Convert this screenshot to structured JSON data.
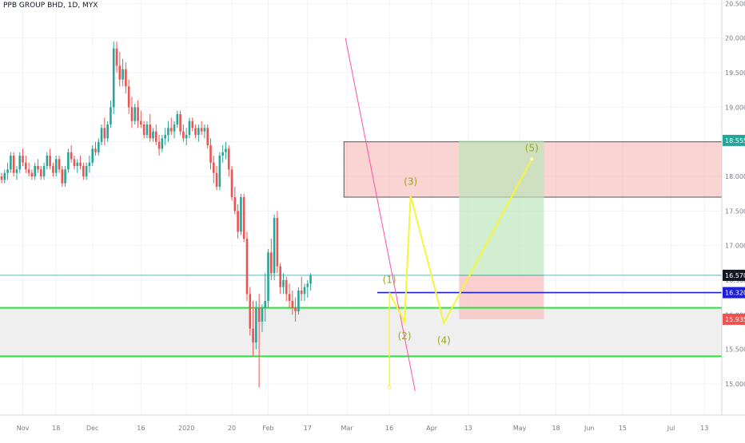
{
  "header": {
    "title": "PPB GROUP BHD, 1D, MYX"
  },
  "colors": {
    "up": "#26a69a",
    "down": "#ef5350",
    "grid": "#f0f3fa",
    "axis_text": "#787b86",
    "trendline": "#ff4fa3",
    "wave": "#f5f53a",
    "wave_label": "#9ea526",
    "support_zone": "#efefef",
    "support_line": "#27e63c",
    "resist_zone": "#f7b6b6",
    "resist_border": "#555555",
    "target_zone": "#b9e6b7",
    "stop_zone": "#f8c3c3",
    "blue_line": "#1f1fd6",
    "teal_line": "#5fb3b0"
  },
  "chart_data": {
    "type": "candlestick",
    "title": "PPB GROUP BHD, 1D, MYX",
    "ylim": [
      14.55,
      20.55
    ],
    "y_ticks": [
      "15.000",
      "15.500",
      "16.000",
      "16.500",
      "17.000",
      "17.500",
      "18.000",
      "18.500",
      "19.000",
      "19.500",
      "20.000",
      "20.500"
    ],
    "x_ticks": [
      {
        "day": 7,
        "label": "Nov"
      },
      {
        "day": 18,
        "label": "18"
      },
      {
        "day": 30,
        "label": "Dec"
      },
      {
        "day": 46,
        "label": "16"
      },
      {
        "day": 61,
        "label": "2020"
      },
      {
        "day": 76,
        "label": "20"
      },
      {
        "day": 88,
        "label": "Feb"
      },
      {
        "day": 101,
        "label": "17"
      },
      {
        "day": 114,
        "label": "Mar"
      },
      {
        "day": 128,
        "label": "16"
      },
      {
        "day": 142,
        "label": "Apr"
      },
      {
        "day": 154,
        "label": "13"
      },
      {
        "day": 171,
        "label": "May"
      },
      {
        "day": 183,
        "label": "18"
      },
      {
        "day": 194,
        "label": "Jun"
      },
      {
        "day": 205,
        "label": "15"
      },
      {
        "day": 221,
        "label": "Jul"
      },
      {
        "day": 232,
        "label": "13"
      }
    ],
    "candles": [
      [
        18.0,
        18.05,
        17.9,
        17.95
      ],
      [
        17.95,
        18.1,
        17.9,
        18.05
      ],
      [
        18.05,
        18.2,
        17.95,
        18.1
      ],
      [
        18.1,
        18.35,
        18.05,
        18.3
      ],
      [
        18.3,
        18.35,
        18.0,
        18.05
      ],
      [
        18.05,
        18.15,
        17.95,
        18.1
      ],
      [
        18.1,
        18.35,
        18.05,
        18.3
      ],
      [
        18.3,
        18.4,
        18.15,
        18.2
      ],
      [
        18.2,
        18.3,
        18.05,
        18.1
      ],
      [
        18.1,
        18.2,
        18.0,
        18.05
      ],
      [
        18.05,
        18.1,
        17.95,
        18.0
      ],
      [
        18.0,
        18.2,
        17.95,
        18.15
      ],
      [
        18.15,
        18.25,
        18.05,
        18.1
      ],
      [
        18.1,
        18.15,
        17.95,
        18.0
      ],
      [
        18.0,
        18.2,
        17.95,
        18.15
      ],
      [
        18.15,
        18.35,
        18.1,
        18.3
      ],
      [
        18.3,
        18.4,
        18.1,
        18.15
      ],
      [
        18.15,
        18.2,
        18.0,
        18.05
      ],
      [
        18.05,
        18.3,
        18.0,
        18.25
      ],
      [
        18.25,
        18.3,
        18.05,
        18.1
      ],
      [
        18.1,
        18.15,
        17.85,
        17.9
      ],
      [
        17.9,
        18.15,
        17.85,
        18.1
      ],
      [
        18.1,
        18.4,
        18.05,
        18.35
      ],
      [
        18.35,
        18.45,
        18.2,
        18.25
      ],
      [
        18.25,
        18.3,
        18.1,
        18.15
      ],
      [
        18.15,
        18.25,
        18.05,
        18.2
      ],
      [
        18.2,
        18.3,
        18.1,
        18.15
      ],
      [
        18.15,
        18.2,
        17.95,
        18.0
      ],
      [
        18.0,
        18.2,
        17.95,
        18.15
      ],
      [
        18.15,
        18.3,
        18.05,
        18.2
      ],
      [
        18.2,
        18.45,
        18.15,
        18.4
      ],
      [
        18.4,
        18.5,
        18.3,
        18.35
      ],
      [
        18.35,
        18.55,
        18.3,
        18.5
      ],
      [
        18.5,
        18.75,
        18.45,
        18.7
      ],
      [
        18.7,
        18.85,
        18.45,
        18.55
      ],
      [
        18.55,
        18.8,
        18.5,
        18.75
      ],
      [
        18.75,
        19.1,
        18.7,
        19.0
      ],
      [
        19.0,
        19.95,
        18.9,
        19.85
      ],
      [
        19.85,
        19.95,
        19.5,
        19.6
      ],
      [
        19.6,
        19.8,
        19.3,
        19.4
      ],
      [
        19.4,
        19.7,
        19.3,
        19.55
      ],
      [
        19.55,
        19.65,
        19.2,
        19.3
      ],
      [
        19.3,
        19.4,
        18.9,
        19.0
      ],
      [
        19.0,
        19.15,
        18.7,
        18.8
      ],
      [
        18.8,
        19.05,
        18.75,
        19.0
      ],
      [
        19.0,
        19.1,
        18.7,
        18.8
      ],
      [
        18.8,
        18.95,
        18.7,
        18.75
      ],
      [
        18.75,
        18.8,
        18.55,
        18.6
      ],
      [
        18.6,
        18.8,
        18.55,
        18.75
      ],
      [
        18.75,
        18.9,
        18.5,
        18.55
      ],
      [
        18.55,
        18.7,
        18.5,
        18.65
      ],
      [
        18.65,
        18.75,
        18.45,
        18.5
      ],
      [
        18.5,
        18.6,
        18.3,
        18.4
      ],
      [
        18.4,
        18.6,
        18.35,
        18.55
      ],
      [
        18.55,
        18.7,
        18.45,
        18.6
      ],
      [
        18.6,
        18.8,
        18.5,
        18.7
      ],
      [
        18.7,
        18.85,
        18.6,
        18.65
      ],
      [
        18.65,
        18.8,
        18.55,
        18.75
      ],
      [
        18.75,
        18.95,
        18.7,
        18.9
      ],
      [
        18.9,
        18.95,
        18.6,
        18.65
      ],
      [
        18.65,
        18.75,
        18.5,
        18.55
      ],
      [
        18.55,
        18.7,
        18.45,
        18.6
      ],
      [
        18.6,
        18.85,
        18.55,
        18.8
      ],
      [
        18.8,
        18.85,
        18.65,
        18.7
      ],
      [
        18.7,
        18.75,
        18.55,
        18.6
      ],
      [
        18.6,
        18.75,
        18.5,
        18.7
      ],
      [
        18.7,
        18.8,
        18.6,
        18.65
      ],
      [
        18.65,
        18.75,
        18.55,
        18.7
      ],
      [
        18.7,
        18.75,
        18.4,
        18.45
      ],
      [
        18.45,
        18.55,
        18.1,
        18.2
      ],
      [
        18.2,
        18.3,
        17.9,
        18.05
      ],
      [
        18.05,
        18.15,
        17.8,
        17.85
      ],
      [
        17.85,
        18.35,
        17.8,
        18.3
      ],
      [
        18.3,
        18.45,
        18.2,
        18.35
      ],
      [
        18.35,
        18.5,
        18.25,
        18.4
      ],
      [
        18.4,
        18.45,
        18.0,
        18.1
      ],
      [
        18.1,
        18.15,
        17.65,
        17.7
      ],
      [
        17.7,
        17.85,
        17.45,
        17.5
      ],
      [
        17.5,
        17.6,
        17.1,
        17.2
      ],
      [
        17.2,
        17.75,
        17.15,
        17.7
      ],
      [
        17.7,
        17.75,
        17.05,
        17.1
      ],
      [
        17.1,
        17.2,
        16.2,
        16.3
      ],
      [
        16.3,
        16.4,
        15.7,
        15.8
      ],
      [
        15.8,
        16.2,
        15.4,
        15.6
      ],
      [
        15.6,
        16.2,
        15.5,
        16.1
      ],
      [
        16.1,
        16.3,
        14.95,
        15.9
      ],
      [
        15.9,
        16.15,
        15.75,
        16.1
      ],
      [
        16.1,
        16.6,
        15.9,
        16.2
      ],
      [
        16.2,
        16.95,
        16.1,
        16.9
      ],
      [
        16.9,
        17.1,
        16.5,
        16.6
      ],
      [
        16.6,
        17.45,
        16.5,
        17.4
      ],
      [
        17.4,
        17.5,
        16.6,
        16.7
      ],
      [
        16.7,
        16.75,
        16.3,
        16.4
      ],
      [
        16.4,
        16.6,
        16.3,
        16.5
      ],
      [
        16.5,
        16.55,
        16.2,
        16.3
      ],
      [
        16.3,
        16.45,
        16.1,
        16.2
      ],
      [
        16.2,
        16.35,
        16.0,
        16.1
      ],
      [
        16.1,
        16.25,
        15.9,
        16.05
      ],
      [
        16.05,
        16.4,
        16.0,
        16.35
      ],
      [
        16.35,
        16.55,
        16.2,
        16.3
      ],
      [
        16.3,
        16.45,
        16.2,
        16.4
      ],
      [
        16.4,
        16.5,
        16.25,
        16.45
      ],
      [
        16.45,
        16.6,
        16.35,
        16.57
      ]
    ],
    "series": [],
    "wave_points": [
      {
        "label": "(1)",
        "day": 128,
        "price": 16.32
      },
      {
        "label": "(2)",
        "day": 133,
        "price": 15.9
      },
      {
        "label": "(3)",
        "day": 135,
        "price": 17.72
      },
      {
        "label": "(4)",
        "day": 146,
        "price": 15.88
      },
      {
        "label": "(5)",
        "day": 175,
        "price": 18.25
      }
    ],
    "price_labels": [
      {
        "text": "18.555",
        "price": 18.52,
        "color": "#26a69a"
      },
      {
        "text": "16.570",
        "price": 16.57,
        "color": "#131722"
      },
      {
        "text": "16.320",
        "price": 16.32,
        "color": "#1f1fd6"
      },
      {
        "text": "15.935",
        "price": 15.935,
        "color": "#ef5350"
      }
    ],
    "levels": {
      "support_zone": [
        15.4,
        16.1
      ],
      "resist_zone": [
        17.7,
        18.5
      ],
      "target_zone": [
        16.57,
        18.52
      ],
      "stop_zone": [
        15.935,
        16.57
      ],
      "blue_line": 16.32,
      "teal_line": 16.57
    }
  }
}
